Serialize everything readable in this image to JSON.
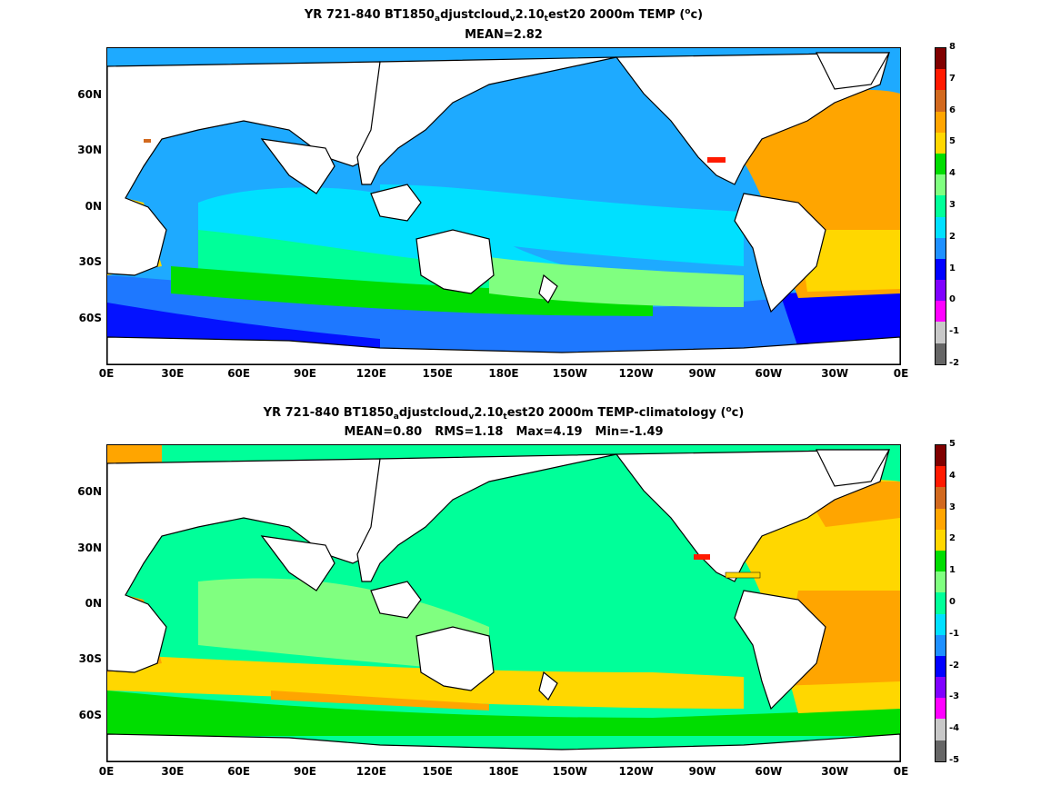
{
  "panels": [
    {
      "id": "top",
      "title_prefix": "YR 721-840 BT1850",
      "title_sub_a": "a",
      "title_mid": "djustcloud",
      "title_sub_v": "v",
      "title_mid2": "2.10",
      "title_sub_t": "t",
      "title_suffix": "est20 2000m TEMP (",
      "title_sup": "o",
      "title_unit": "c)",
      "stats": [
        "MEAN=2.82"
      ],
      "colorbar_labels": [
        "8",
        "7",
        "6",
        "5",
        "4",
        "3",
        "2",
        "1",
        "0",
        "-1",
        "-2"
      ],
      "colorbar_colors": [
        "#800000",
        "#ff1a00",
        "#d2691e",
        "#ffa500",
        "#ffd700",
        "#00dd00",
        "#80ff80",
        "#00ff99",
        "#00e0ff",
        "#1e90ff",
        "#0000ff",
        "#8000ff",
        "#ff00ff",
        "#c8c8c8",
        "#666666"
      ],
      "ocean_fill": {
        "north_pacific": "#1eaaff",
        "indian": "#00e0ff",
        "south_band": "#80ff80",
        "southern_ocean": "#1e78ff",
        "atlantic": "#ffa500"
      }
    },
    {
      "id": "bottom",
      "title_prefix": "YR 721-840 BT1850",
      "title_sub_a": "a",
      "title_mid": "djustcloud",
      "title_sub_v": "v",
      "title_mid2": "2.10",
      "title_sub_t": "t",
      "title_suffix": "est20 2000m TEMP-climatology (",
      "title_sup": "o",
      "title_unit": "c)",
      "stats": [
        "MEAN=0.80",
        "RMS=1.18",
        "Max=4.19",
        "Min=-1.49"
      ],
      "colorbar_labels": [
        "5",
        "4",
        "3",
        "2",
        "1",
        "0",
        "-1",
        "-2",
        "-3",
        "-4",
        "-5"
      ],
      "colorbar_colors": [
        "#800000",
        "#ff1a00",
        "#d2691e",
        "#ffa500",
        "#ffd700",
        "#00dd00",
        "#80ff80",
        "#00ff99",
        "#00e0ff",
        "#1e90ff",
        "#0000ff",
        "#8000ff",
        "#ff00ff",
        "#c8c8c8",
        "#666666"
      ],
      "ocean_fill": {
        "north_pacific": "#00ff99",
        "indian": "#80ff80",
        "south_band": "#ffd700",
        "southern_ocean": "#00dd00",
        "atlantic": "#ffd700"
      }
    }
  ],
  "x_ticks": [
    "0E",
    "30E",
    "60E",
    "90E",
    "120E",
    "150E",
    "180E",
    "150W",
    "120W",
    "90W",
    "60W",
    "30W",
    "0E"
  ],
  "y_ticks": [
    "60N",
    "30N",
    "0N",
    "30S",
    "60S"
  ]
}
